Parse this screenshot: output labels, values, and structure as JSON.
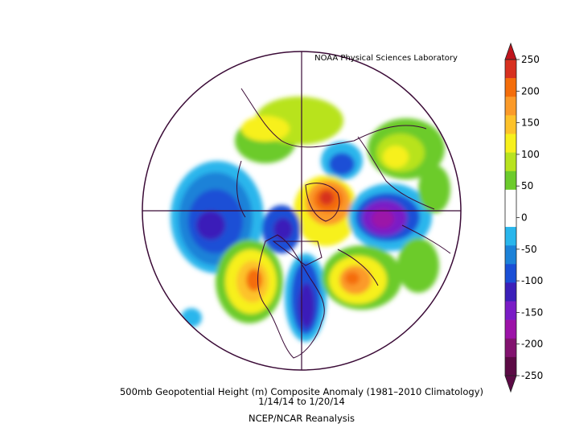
{
  "credit": "NOAA Physical Sciences Laboratory",
  "caption": {
    "line1": "500mb Geopotential Height (m) Composite Anomaly (1981–2010 Climatology)",
    "line2": "1/14/14   to 1/20/14",
    "line3": "NCEP/NCAR Reanalysis"
  },
  "colorbar": {
    "labels": [
      "250",
      "200",
      "150",
      "100",
      "50",
      "0",
      "-50",
      "-100",
      "-150",
      "-200",
      "-250"
    ],
    "colors_top_to_bottom": [
      "#d7301f",
      "#f46d0a",
      "#fb9a29",
      "#fdc22a",
      "#f7f01c",
      "#b8e31f",
      "#6ccb2c",
      "#ffffff",
      "#ffffff",
      "#29b6ec",
      "#1c82d8",
      "#1a4fd6",
      "#3b1fb9",
      "#7a1cc6",
      "#9c12a8",
      "#82126f",
      "#5c0a45"
    ]
  },
  "colors": {
    "outline": "#3a0a36",
    "arrow_top": "#c0141d",
    "arrow_bottom": "#5c0a45"
  }
}
